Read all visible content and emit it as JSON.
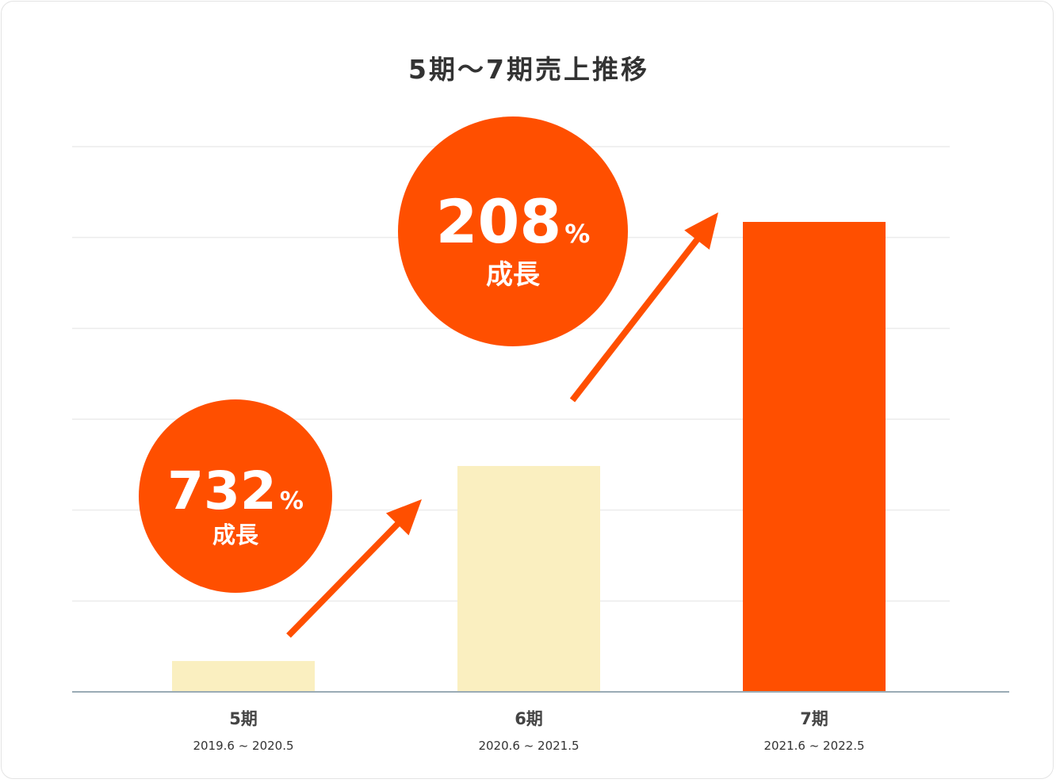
{
  "chart_data": {
    "type": "bar",
    "title": "5期～7期売上推移",
    "categories": [
      "5期",
      "6期",
      "7期"
    ],
    "periods": [
      "2019.6 ~ 2020.5",
      "2020.6 ~ 2021.5",
      "2021.6 ~ 2022.5"
    ],
    "values": [
      1,
      7.32,
      15.23
    ],
    "value_scale": "relative to 5期 (no y-axis values printed)",
    "ylim": [
      0,
      17.67
    ],
    "grid": true,
    "bar_colors": [
      "#faefc0",
      "#faefc0",
      "#ff4f00"
    ],
    "axis_color": "#9aabb5",
    "grid_color": "#ececec",
    "accent_color": "#ff4f00",
    "annotations": [
      {
        "value": "732",
        "unit": "%",
        "caption": "成長",
        "from": "5期",
        "to": "6期"
      },
      {
        "value": "208",
        "unit": "%",
        "caption": "成長",
        "from": "6期",
        "to": "7期"
      }
    ]
  }
}
